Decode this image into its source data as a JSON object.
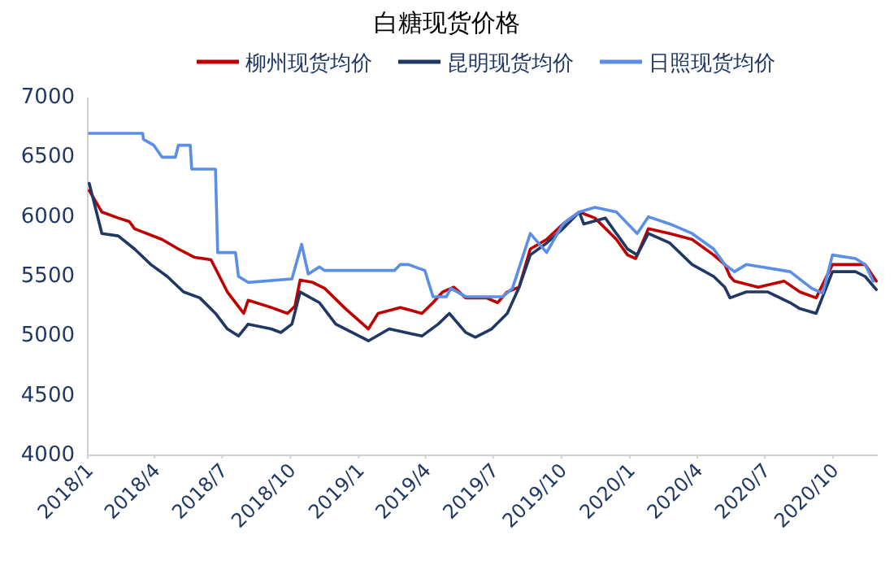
{
  "chart_data": {
    "type": "line",
    "title": "白糖现货价格",
    "series": [
      {
        "name": "柳州现货均价",
        "color": "#c00000",
        "x": [
          "2018-01-03",
          "2018-01-20",
          "2018-02-11",
          "2018-02-26",
          "2018-03-05",
          "2018-04-11",
          "2018-05-03",
          "2018-05-25",
          "2018-06-16",
          "2018-07-08",
          "2018-07-30",
          "2018-08-05",
          "2018-09-05",
          "2018-09-27",
          "2018-10-07",
          "2018-10-14",
          "2018-10-31",
          "2018-11-16",
          "2018-12-14",
          "2019-01-14",
          "2019-01-27",
          "2019-02-26",
          "2019-03-27",
          "2019-04-11",
          "2019-04-24",
          "2019-05-09",
          "2019-05-25",
          "2019-06-22",
          "2019-07-07",
          "2019-07-20",
          "2019-08-05",
          "2019-08-20",
          "2019-09-11",
          "2019-10-03",
          "2019-10-25",
          "2019-11-15",
          "2019-12-14",
          "2019-12-29",
          "2020-01-09",
          "2020-01-26",
          "2020-02-24",
          "2020-03-25",
          "2020-04-23",
          "2020-05-08",
          "2020-05-15",
          "2020-05-21",
          "2020-06-22",
          "2020-07-27",
          "2020-08-17",
          "2020-09-08",
          "2020-09-30",
          "2020-10-31",
          "2020-11-13",
          "2020-11-28"
        ],
        "values": [
          6220,
          6040,
          5990,
          5960,
          5900,
          5810,
          5730,
          5660,
          5640,
          5370,
          5190,
          5300,
          5240,
          5190,
          5250,
          5470,
          5450,
          5400,
          5230,
          5060,
          5190,
          5240,
          5190,
          5280,
          5370,
          5410,
          5320,
          5320,
          5280,
          5370,
          5410,
          5730,
          5810,
          5940,
          6040,
          5990,
          5810,
          5680,
          5650,
          5900,
          5860,
          5810,
          5680,
          5600,
          5500,
          5460,
          5410,
          5460,
          5370,
          5320,
          5600,
          5600,
          5600,
          5460
        ]
      },
      {
        "name": "昆明现货均价",
        "color": "#1f3864",
        "x": [
          "2018-01-03",
          "2018-01-20",
          "2018-02-11",
          "2018-03-05",
          "2018-03-27",
          "2018-04-18",
          "2018-05-10",
          "2018-06-01",
          "2018-06-22",
          "2018-07-08",
          "2018-07-23",
          "2018-08-05",
          "2018-09-05",
          "2018-09-18",
          "2018-10-03",
          "2018-10-14",
          "2018-11-09",
          "2018-12-01",
          "2019-01-14",
          "2019-02-11",
          "2019-03-27",
          "2019-04-18",
          "2019-05-03",
          "2019-05-25",
          "2019-06-07",
          "2019-06-29",
          "2019-07-20",
          "2019-08-05",
          "2019-08-20",
          "2019-09-11",
          "2019-10-03",
          "2019-10-25",
          "2019-10-31",
          "2019-11-29",
          "2019-12-14",
          "2019-12-29",
          "2020-01-11",
          "2020-01-26",
          "2020-02-24",
          "2020-03-25",
          "2020-04-23",
          "2020-05-08",
          "2020-05-15",
          "2020-06-06",
          "2020-07-05",
          "2020-08-04",
          "2020-08-17",
          "2020-09-08",
          "2020-09-30",
          "2020-10-31",
          "2020-11-13",
          "2020-11-28"
        ],
        "values": [
          6280,
          5860,
          5840,
          5730,
          5600,
          5500,
          5370,
          5320,
          5190,
          5060,
          5000,
          5100,
          5060,
          5030,
          5100,
          5370,
          5280,
          5100,
          4960,
          5060,
          5000,
          5100,
          5190,
          5030,
          4990,
          5060,
          5190,
          5410,
          5680,
          5780,
          5900,
          6040,
          5940,
          5990,
          5860,
          5730,
          5680,
          5860,
          5780,
          5600,
          5500,
          5410,
          5320,
          5370,
          5370,
          5280,
          5230,
          5190,
          5540,
          5540,
          5500,
          5390
        ]
      },
      {
        "name": "日照现货均价",
        "color": "#5b8ee6",
        "x": [
          "2018-01-03",
          "2018-03-16",
          "2018-03-17",
          "2018-03-31",
          "2018-04-11",
          "2018-04-29",
          "2018-05-03",
          "2018-05-19",
          "2018-05-21",
          "2018-06-22",
          "2018-06-25",
          "2018-07-19",
          "2018-07-23",
          "2018-08-05",
          "2018-10-03",
          "2018-10-16",
          "2018-10-25",
          "2018-11-09",
          "2018-11-16",
          "2019-02-18",
          "2019-02-26",
          "2019-03-09",
          "2019-03-31",
          "2019-04-11",
          "2019-04-29",
          "2019-05-05",
          "2019-05-25",
          "2019-07-14",
          "2019-07-27",
          "2019-08-20",
          "2019-09-11",
          "2019-10-03",
          "2019-10-25",
          "2019-11-15",
          "2019-12-14",
          "2020-01-11",
          "2020-01-26",
          "2020-02-24",
          "2020-03-25",
          "2020-04-23",
          "2020-05-08",
          "2020-05-21",
          "2020-06-06",
          "2020-08-04",
          "2020-09-02",
          "2020-09-17",
          "2020-09-30",
          "2020-10-31",
          "2020-11-13",
          "2020-11-24"
        ],
        "values": [
          6700,
          6700,
          6650,
          6600,
          6500,
          6500,
          6600,
          6600,
          6400,
          6400,
          5700,
          5700,
          5500,
          5450,
          5480,
          5770,
          5520,
          5580,
          5550,
          5550,
          5600,
          5600,
          5550,
          5330,
          5330,
          5400,
          5330,
          5330,
          5400,
          5860,
          5700,
          5940,
          6040,
          6080,
          6040,
          5860,
          6000,
          5940,
          5860,
          5730,
          5600,
          5540,
          5600,
          5540,
          5400,
          5360,
          5680,
          5650,
          5600,
          5460
        ]
      }
    ],
    "xlim": [
      "2018-01-01",
      "2020-11-30"
    ],
    "xticks": [
      {
        "value": "2018-01-01",
        "label": "2018/1"
      },
      {
        "value": "2018-04-01",
        "label": "2018/4"
      },
      {
        "value": "2018-07-01",
        "label": "2018/7"
      },
      {
        "value": "2018-10-01",
        "label": "2018/10"
      },
      {
        "value": "2019-01-01",
        "label": "2019/1"
      },
      {
        "value": "2019-04-01",
        "label": "2019/4"
      },
      {
        "value": "2019-07-01",
        "label": "2019/7"
      },
      {
        "value": "2019-10-01",
        "label": "2019/10"
      },
      {
        "value": "2020-01-01",
        "label": "2020/1"
      },
      {
        "value": "2020-04-01",
        "label": "2020/4"
      },
      {
        "value": "2020-07-01",
        "label": "2020/7"
      },
      {
        "value": "2020-10-01",
        "label": "2020/10"
      }
    ],
    "ylim": [
      4000,
      7000
    ],
    "yticks": [
      4000,
      4500,
      5000,
      5500,
      6000,
      6500,
      7000
    ],
    "legend": "top"
  }
}
